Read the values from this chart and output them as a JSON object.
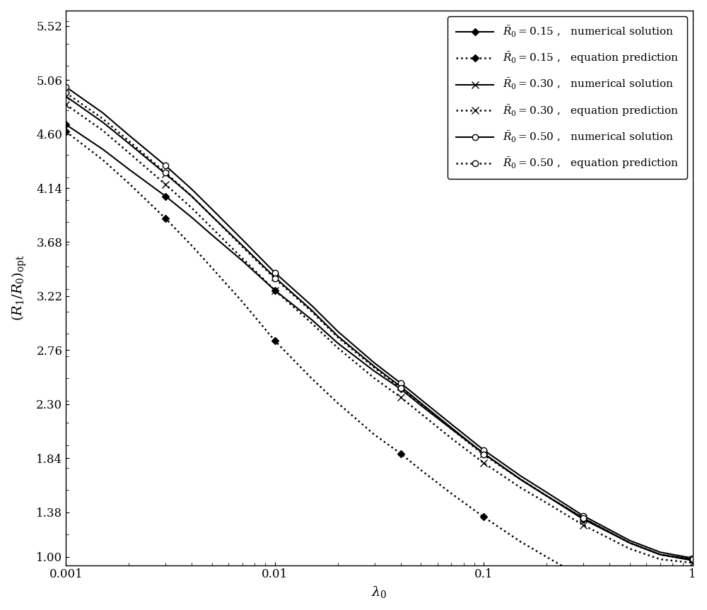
{
  "xlabel": "$\\lambda_0$",
  "ylabel": "$(R_1/R_0)_{\\mathrm{opt}}$",
  "yticks": [
    1.0,
    1.38,
    1.84,
    2.3,
    2.76,
    3.22,
    3.68,
    4.14,
    4.6,
    5.06,
    5.52
  ],
  "ylim": [
    0.93,
    5.65
  ],
  "xlim": [
    0.001,
    1.0
  ],
  "x_data": [
    0.001,
    0.0015,
    0.002,
    0.003,
    0.004,
    0.005,
    0.007,
    0.01,
    0.015,
    0.02,
    0.03,
    0.04,
    0.05,
    0.07,
    0.1,
    0.15,
    0.2,
    0.3,
    0.5,
    0.7,
    1.0
  ],
  "curves": {
    "R015_num": {
      "y": [
        4.68,
        4.47,
        4.3,
        4.07,
        3.89,
        3.74,
        3.52,
        3.27,
        3.02,
        2.82,
        2.58,
        2.43,
        2.29,
        2.09,
        1.88,
        1.66,
        1.52,
        1.32,
        1.12,
        1.02,
        0.97
      ],
      "linestyle": "solid",
      "marker": "D",
      "color": "#000000",
      "markersize": 5,
      "markerfacecolor": "#000000",
      "linewidth": 1.5,
      "label": "$\\bar{R}_0 =0.15$ ,   numerical solution",
      "marker_indices": [
        0,
        3,
        7,
        11,
        14,
        17,
        20
      ]
    },
    "R015_eq": {
      "y": [
        4.62,
        4.38,
        4.18,
        3.88,
        3.65,
        3.46,
        3.17,
        2.84,
        2.52,
        2.31,
        2.04,
        1.88,
        1.74,
        1.54,
        1.34,
        1.13,
        1.0,
        0.82,
        0.65,
        0.57,
        0.54
      ],
      "linestyle": "dotted",
      "marker": "D",
      "color": "#000000",
      "markersize": 5,
      "markerfacecolor": "#000000",
      "linewidth": 1.8,
      "label": "$\\bar{R}_0 =0.15$ ,   equation prediction",
      "marker_indices": [
        0,
        3,
        7,
        11,
        14,
        17,
        20
      ]
    },
    "R030_num": {
      "y": [
        4.92,
        4.7,
        4.52,
        4.26,
        4.07,
        3.9,
        3.65,
        3.38,
        3.1,
        2.88,
        2.62,
        2.45,
        2.31,
        2.1,
        1.88,
        1.66,
        1.52,
        1.33,
        1.12,
        1.02,
        0.98
      ],
      "linestyle": "solid",
      "marker": "x",
      "color": "#000000",
      "markersize": 7,
      "markerfacecolor": "#000000",
      "linewidth": 1.5,
      "label": "$\\bar{R}_0 =0.30$ ,   numerical solution",
      "marker_indices": [
        0,
        3,
        7,
        11,
        14,
        17,
        20
      ]
    },
    "R030_eq": {
      "y": [
        4.85,
        4.63,
        4.44,
        4.17,
        3.97,
        3.8,
        3.54,
        3.27,
        2.99,
        2.78,
        2.52,
        2.36,
        2.22,
        2.01,
        1.8,
        1.59,
        1.46,
        1.27,
        1.07,
        0.98,
        0.95
      ],
      "linestyle": "dotted",
      "marker": "x",
      "color": "#000000",
      "markersize": 7,
      "markerfacecolor": "#000000",
      "linewidth": 1.8,
      "label": "$\\bar{R}_0 =0.30$ ,   equation prediction",
      "marker_indices": [
        0,
        3,
        7,
        11,
        14,
        17,
        20
      ]
    },
    "R050_num": {
      "y": [
        5.0,
        4.78,
        4.59,
        4.33,
        4.13,
        3.96,
        3.7,
        3.42,
        3.14,
        2.92,
        2.65,
        2.48,
        2.34,
        2.13,
        1.91,
        1.69,
        1.55,
        1.35,
        1.14,
        1.04,
        0.99
      ],
      "linestyle": "solid",
      "marker": "o",
      "color": "#000000",
      "markersize": 6,
      "markerfacecolor": "white",
      "linewidth": 1.5,
      "label": "$\\bar{R}_0 =0.50$ ,   numerical solution",
      "marker_indices": [
        0,
        3,
        7,
        11,
        14,
        17,
        20
      ]
    },
    "R050_eq": {
      "y": [
        4.95,
        4.73,
        4.54,
        4.27,
        4.07,
        3.9,
        3.64,
        3.37,
        3.09,
        2.87,
        2.61,
        2.44,
        2.3,
        2.09,
        1.87,
        1.66,
        1.52,
        1.33,
        1.12,
        1.02,
        0.98
      ],
      "linestyle": "dotted",
      "marker": "o",
      "color": "#000000",
      "markersize": 6,
      "markerfacecolor": "white",
      "linewidth": 1.8,
      "label": "$\\bar{R}_0 =0.50$ ,   equation prediction",
      "marker_indices": [
        0,
        3,
        7,
        11,
        14,
        17,
        20
      ]
    }
  },
  "curve_order": [
    "R015_num",
    "R015_eq",
    "R030_num",
    "R030_eq",
    "R050_num",
    "R050_eq"
  ],
  "legend_labels": [
    "$\\bar{R}_0 =0.15$ ,   numerical solution",
    "$\\bar{R}_0 =0.15$ ,   equation prediction",
    "$\\bar{R}_0 =0.30$ ,   numerical solution",
    "$\\bar{R}_0 =0.30$ ,   equation prediction",
    "$\\bar{R}_0 =0.50$ ,   numerical solution",
    "$\\bar{R}_0 =0.50$ ,   equation prediction"
  ],
  "background_color": "#ffffff",
  "axis_fontsize": 14,
  "tick_fontsize": 12,
  "legend_fontsize": 11
}
